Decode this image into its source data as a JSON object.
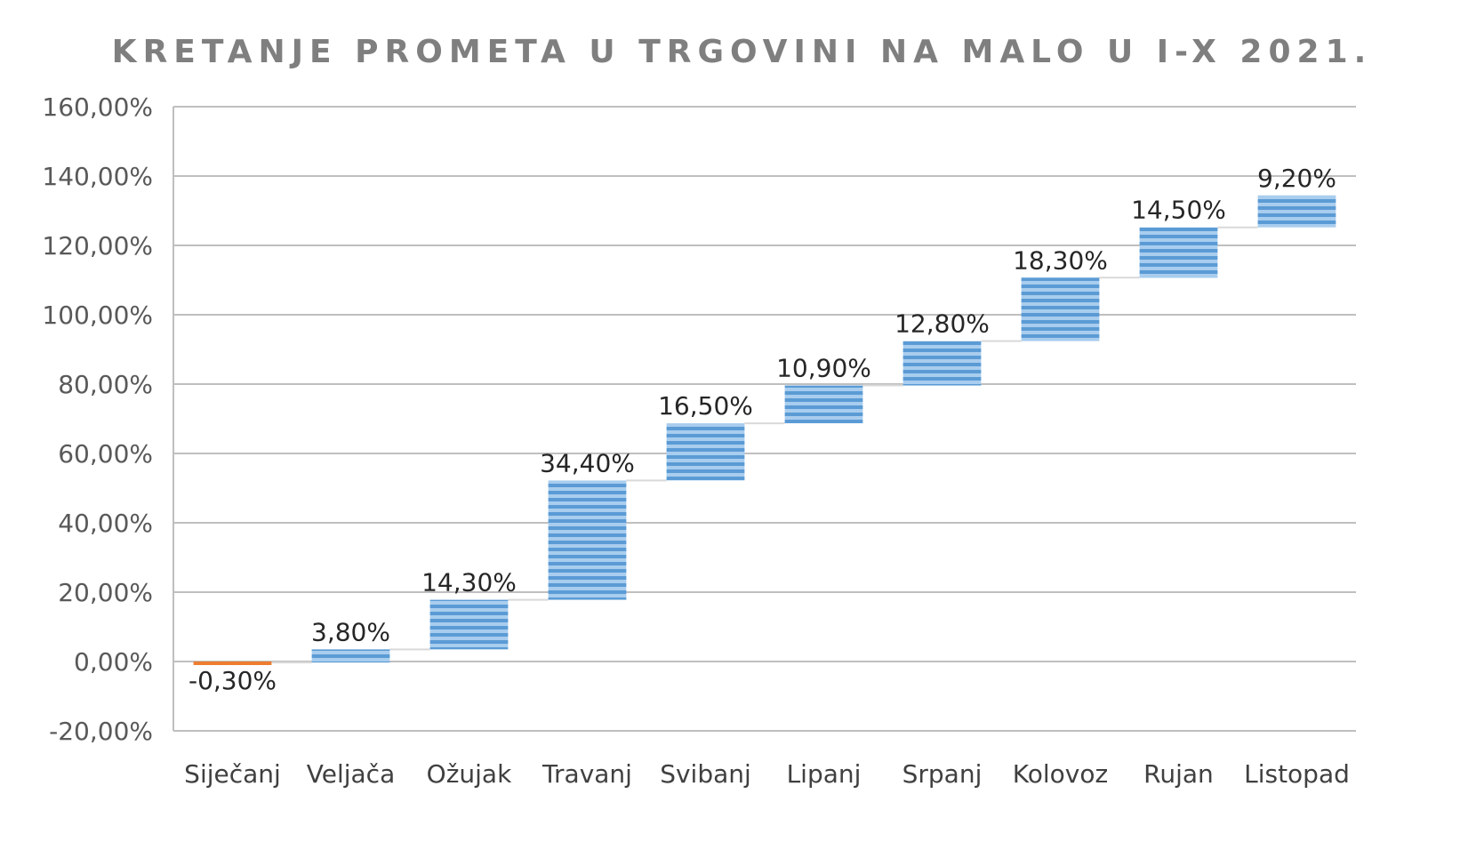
{
  "chart_data": {
    "type": "waterfall",
    "title": "KRETANJE PROMETA U TRGOVINI NA MALO U I-X 2021.",
    "categories": [
      "Siječanj",
      "Veljača",
      "Ožujak",
      "Travanj",
      "Svibanj",
      "Lipanj",
      "Srpanj",
      "Kolovoz",
      "Rujan",
      "Listopad"
    ],
    "values": [
      -0.3,
      3.8,
      14.3,
      34.4,
      16.5,
      10.9,
      12.8,
      18.3,
      14.5,
      9.2
    ],
    "data_labels": [
      "-0,30%",
      "3,80%",
      "14,30%",
      "34,40%",
      "16,50%",
      "10,90%",
      "12,80%",
      "18,30%",
      "14,50%",
      "9,20%"
    ],
    "y_ticks": [
      "160,00%",
      "140,00%",
      "120,00%",
      "100,00%",
      "80,00%",
      "60,00%",
      "40,00%",
      "20,00%",
      "0,00%",
      "-20,00%"
    ],
    "y_tick_values": [
      160,
      140,
      120,
      100,
      80,
      60,
      40,
      20,
      0,
      -20
    ],
    "ylim": [
      -20,
      160
    ],
    "grid": true,
    "colors": {
      "increase": "#5b9bd5",
      "decrease": "#ed7d31",
      "grid": "#bfbfbf",
      "connector": "#d9d9d9"
    }
  }
}
